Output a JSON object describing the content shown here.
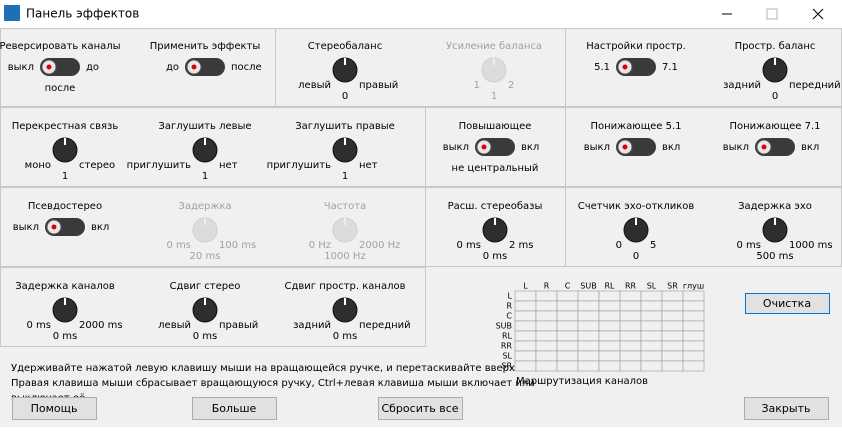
{
  "window": {
    "title": "Панель эффектов"
  },
  "controls": [
    {
      "kind": "toggle",
      "title": "Реверсировать каналы",
      "left": "выкл",
      "right": "до",
      "below": "после"
    },
    {
      "kind": "toggle",
      "title": "Применить эффекты",
      "left": "до",
      "right": "после"
    },
    {
      "kind": "knob",
      "title": "Стереобаланс",
      "left": "левый",
      "right": "правый",
      "value": "0"
    },
    {
      "kind": "knob",
      "title": "Усиление баланса",
      "left": "1",
      "right": "2",
      "value": "1",
      "disabled": true
    },
    {
      "kind": "toggle",
      "title": "Настройки простр.",
      "left": "5.1",
      "right": "7.1"
    },
    {
      "kind": "knob",
      "title": "Простр. баланс",
      "left": "задний",
      "right": "передний",
      "value": "0"
    },
    {
      "kind": "knob",
      "title": "Перекрестная связь",
      "left": "моно",
      "right": "стерео",
      "value": "1"
    },
    {
      "kind": "knob",
      "title": "Заглушить левые",
      "left": "приглушить",
      "right": "нет",
      "value": "1"
    },
    {
      "kind": "knob",
      "title": "Заглушить правые",
      "left": "приглушить",
      "right": "нет",
      "value": "1"
    },
    {
      "kind": "toggle",
      "title": "Повышающее",
      "left": "выкл",
      "right": "вкл",
      "below": "не центральный"
    },
    {
      "kind": "toggle",
      "title": "Понижающее 5.1",
      "left": "выкл",
      "right": "вкл"
    },
    {
      "kind": "toggle",
      "title": "Понижающее 7.1",
      "left": "выкл",
      "right": "вкл"
    },
    {
      "kind": "toggle",
      "title": "Псевдостерео",
      "left": "выкл",
      "right": "вкл"
    },
    {
      "kind": "knob",
      "title": "Задержка",
      "left": "0 ms",
      "right": "100 ms",
      "value": "20 ms",
      "disabled": true
    },
    {
      "kind": "knob",
      "title": "Частота",
      "left": "0 Hz",
      "right": "2000 Hz",
      "value": "1000 Hz",
      "disabled": true
    },
    {
      "kind": "knob",
      "title": "Расш. стереобазы",
      "left": "0 ms",
      "right": "2 ms",
      "value": "0 ms"
    },
    {
      "kind": "knob",
      "title": "Счетчик эхо-откликов",
      "left": "0",
      "right": "5",
      "value": "0"
    },
    {
      "kind": "knob",
      "title": "Задержка эхо",
      "left": "0 ms",
      "right": "1000 ms",
      "value": "500 ms"
    },
    {
      "kind": "knob",
      "title": "Задержка каналов",
      "left": "0 ms",
      "right": "2000 ms",
      "value": "0 ms"
    },
    {
      "kind": "knob",
      "title": "Сдвиг стерео",
      "left": "левый",
      "right": "правый",
      "value": "0 ms"
    },
    {
      "kind": "knob",
      "title": "Сдвиг простр. каналов",
      "left": "задний",
      "right": "передний",
      "value": "0 ms"
    }
  ],
  "routing": {
    "columns": [
      "L",
      "R",
      "C",
      "SUB",
      "RL",
      "RR",
      "SL",
      "SR",
      "глуш"
    ],
    "rows": [
      "L",
      "R",
      "C",
      "SUB",
      "RL",
      "RR",
      "SL",
      "SR"
    ],
    "label": "Маршрутизация каналов",
    "clear": "Очистка"
  },
  "help": [
    "Удерживайте нажатой левую клавишу мыши на вращающейся ручке, и перетаскивайте вверх",
    "Правая клавиша мыши сбрасывает вращающуюся ручку, Ctrl+левая клавиша мыши включает или",
    "выключает её"
  ],
  "buttons": [
    "Помощь",
    "Больше",
    "Сбросить все",
    "Закрыть"
  ]
}
